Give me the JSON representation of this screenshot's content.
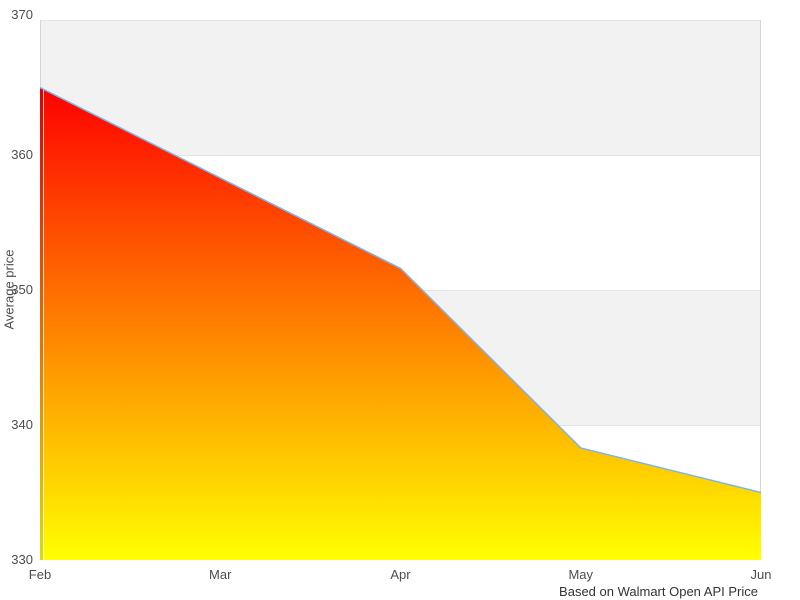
{
  "chart_data": {
    "type": "area",
    "categories": [
      "Feb",
      "Mar",
      "Apr",
      "May",
      "Jun"
    ],
    "values": [
      365,
      358.3,
      351.6,
      338.3,
      335
    ],
    "ylabel": "Average price",
    "ylim": [
      330,
      370
    ],
    "yticks": [
      330,
      340,
      350,
      360,
      370
    ],
    "caption": "Based on Walmart Open API Price",
    "legend": "none",
    "grid": "horizontal-alternating-bands",
    "colors": {
      "area_gradient_top": "#ff0000",
      "area_gradient_bottom": "#ffff00",
      "line": "#7cb5ec",
      "band_fill": "#f2f2f2",
      "gridline": "#e4e4e4",
      "plot_border": "#d5d5d5",
      "tick_text": "#4d4d4d",
      "caption_text": "#333333"
    }
  }
}
